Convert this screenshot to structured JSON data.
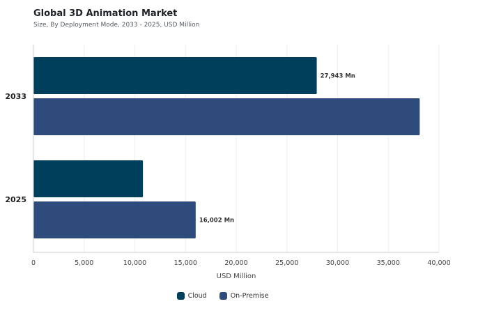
{
  "title": "Global 3D Animation Market",
  "subtitle": "Size, By Deployment Mode, 2033 - 2025, USD Million",
  "colors": {
    "cloud": "#003f5c",
    "on_premise": "#2f4b7c",
    "grid": "#eeeeee",
    "axis": "#cccccc",
    "text": "#333333"
  },
  "chart_data": {
    "type": "bar",
    "orientation": "horizontal",
    "categories": [
      "2033",
      "2025"
    ],
    "series": [
      {
        "name": "Cloud",
        "values": [
          27943,
          10800
        ]
      },
      {
        "name": "On-Premise",
        "values": [
          38100,
          16002
        ]
      }
    ],
    "data_labels": [
      {
        "category": "2033",
        "series": "Cloud",
        "text": "27,943 Mn"
      },
      {
        "category": "2025",
        "series": "On-Premise",
        "text": "16,002 Mn"
      }
    ],
    "xlabel": "USD Million",
    "ylabel": "",
    "xlim": [
      0,
      40000
    ],
    "xticks": [
      0,
      5000,
      10000,
      15000,
      20000,
      25000,
      30000,
      35000,
      40000
    ],
    "xtick_labels": [
      "0",
      "5,000",
      "10,000",
      "15,000",
      "20,000",
      "25,000",
      "30,000",
      "35,000",
      "40,000"
    ],
    "grid": true,
    "legend_position": "bottom"
  },
  "legend": [
    {
      "label": "Cloud",
      "color": "#003f5c"
    },
    {
      "label": "On-Premise",
      "color": "#2f4b7c"
    }
  ]
}
